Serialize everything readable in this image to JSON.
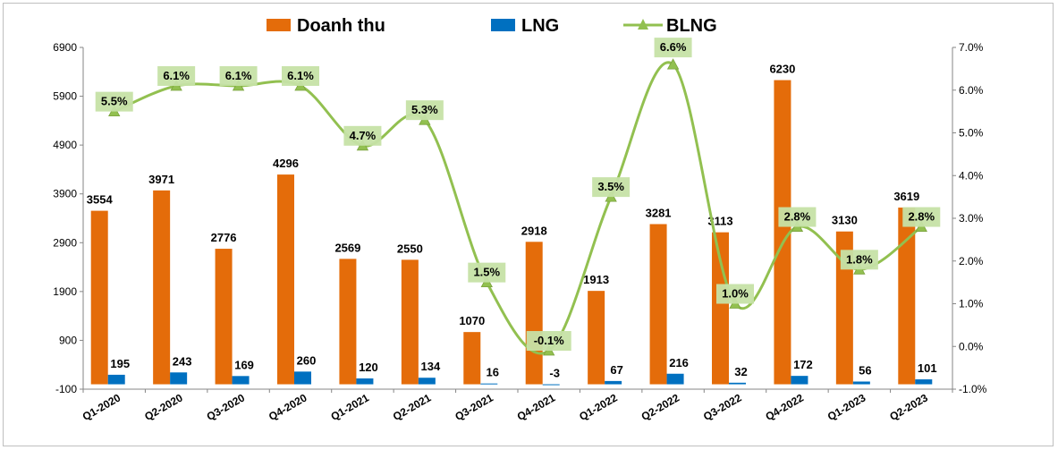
{
  "chart_data": {
    "type": "bar",
    "categories": [
      "Q1-2020",
      "Q2-2020",
      "Q3-2020",
      "Q4-2020",
      "Q1-2021",
      "Q2-2021",
      "Q3-2021",
      "Q4-2021",
      "Q1-2022",
      "Q2-2022",
      "Q3-2022",
      "Q4-2022",
      "Q1-2023",
      "Q2-2023"
    ],
    "series": [
      {
        "name": "Doanh thu",
        "type": "bar",
        "axis": "left",
        "color": "#E46C0A",
        "values": [
          3554,
          3971,
          2776,
          4296,
          2569,
          2550,
          1070,
          2918,
          1913,
          3281,
          3113,
          6230,
          3130,
          3619
        ]
      },
      {
        "name": "LNG",
        "type": "bar",
        "axis": "left",
        "color": "#0070C0",
        "values": [
          195,
          243,
          169,
          260,
          120,
          134,
          16,
          -3,
          67,
          216,
          32,
          172,
          56,
          101
        ]
      },
      {
        "name": "BLNG",
        "type": "line",
        "axis": "right",
        "color": "#92C050",
        "marker": "triangle",
        "values": [
          5.5,
          6.1,
          6.1,
          6.1,
          4.7,
          5.3,
          1.5,
          -0.1,
          3.5,
          6.6,
          1.0,
          2.8,
          1.8,
          2.8
        ],
        "labels": [
          "5.5%",
          "6.1%",
          "6.1%",
          "6.1%",
          "4.7%",
          "5.3%",
          "1.5%",
          "-0.1%",
          "3.5%",
          "6.6%",
          "1.0%",
          "2.8%",
          "1.8%",
          "2.8%"
        ]
      }
    ],
    "y_left": {
      "ylim": [
        -100,
        6900
      ],
      "ticks": [
        "-100",
        "900",
        "1900",
        "2900",
        "3900",
        "4900",
        "5900",
        "6900"
      ]
    },
    "y_right": {
      "ylim": [
        -1.0,
        7.0
      ],
      "ticks": [
        "-1.0%",
        "0.0%",
        "1.0%",
        "2.0%",
        "3.0%",
        "4.0%",
        "5.0%",
        "6.0%",
        "7.0%"
      ]
    },
    "legend": {
      "placement": "top-center",
      "items": [
        "Doanh thu",
        "LNG",
        "BLNG"
      ]
    },
    "grid": false,
    "title": "",
    "line_label_bg": "#C6E2A6"
  }
}
